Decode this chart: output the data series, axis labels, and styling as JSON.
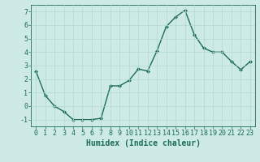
{
  "x": [
    0,
    1,
    2,
    3,
    4,
    5,
    6,
    7,
    8,
    9,
    10,
    11,
    12,
    13,
    14,
    15,
    16,
    17,
    18,
    19,
    20,
    21,
    22,
    23
  ],
  "y": [
    2.6,
    0.8,
    0.0,
    -0.4,
    -1.0,
    -1.0,
    -1.0,
    -0.9,
    1.5,
    1.5,
    1.9,
    2.75,
    2.6,
    4.1,
    5.9,
    6.6,
    7.1,
    5.3,
    4.3,
    4.0,
    4.0,
    3.3,
    2.7,
    3.3
  ],
  "line_color": "#1a6b5a",
  "marker": "D",
  "marker_size": 2,
  "bg_color": "#ceeae6",
  "grid_color": "#b0d8d2",
  "xlabel": "Humidex (Indice chaleur)",
  "xlim": [
    -0.5,
    23.5
  ],
  "ylim": [
    -1.5,
    7.5
  ],
  "yticks": [
    -1,
    0,
    1,
    2,
    3,
    4,
    5,
    6,
    7
  ],
  "xticks": [
    0,
    1,
    2,
    3,
    4,
    5,
    6,
    7,
    8,
    9,
    10,
    11,
    12,
    13,
    14,
    15,
    16,
    17,
    18,
    19,
    20,
    21,
    22,
    23
  ],
  "tick_color": "#1a6b5a",
  "label_color": "#1a6b5a",
  "font_size_label": 7,
  "font_size_tick": 6,
  "line_width": 1.0
}
